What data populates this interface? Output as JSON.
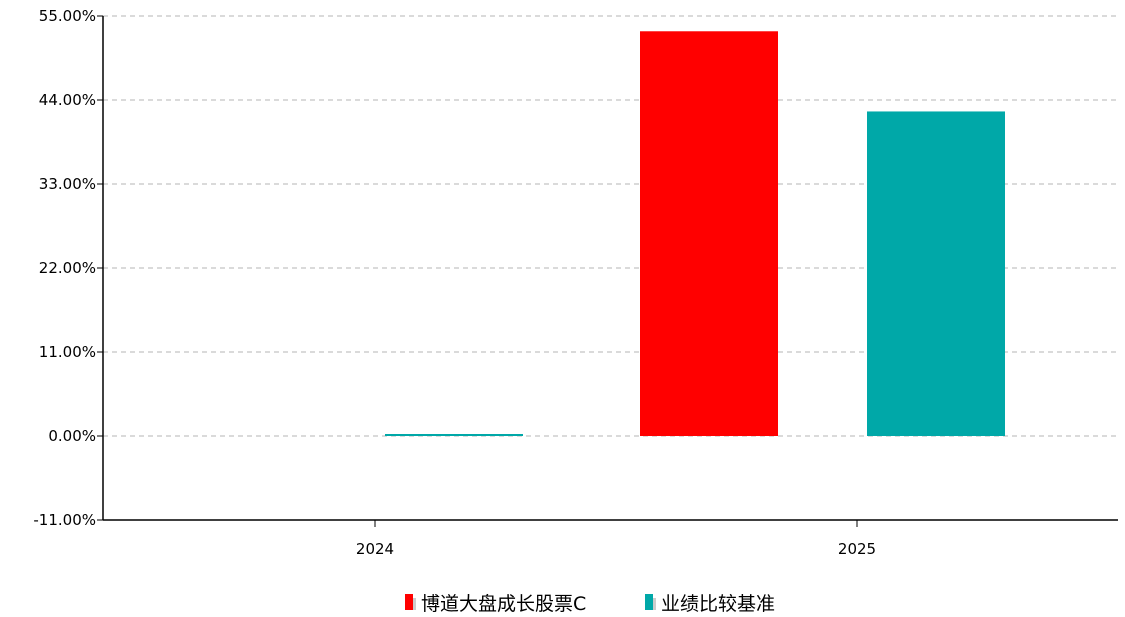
{
  "chart_data": {
    "type": "bar",
    "categories": [
      "2024",
      "2025"
    ],
    "series": [
      {
        "name": "博道大盘成长股票C",
        "color": "#ff0000",
        "values": [
          null,
          53.0
        ]
      },
      {
        "name": "业绩比较基准",
        "color": "#00a8a8",
        "values": [
          0.25,
          42.5
        ]
      }
    ],
    "y_ticks": [
      "55.00%",
      "44.00%",
      "33.00%",
      "22.00%",
      "11.00%",
      "0.00%",
      "-11.00%"
    ],
    "ylim": [
      -11,
      55
    ],
    "grid": true,
    "legend_position": "bottom-center"
  }
}
